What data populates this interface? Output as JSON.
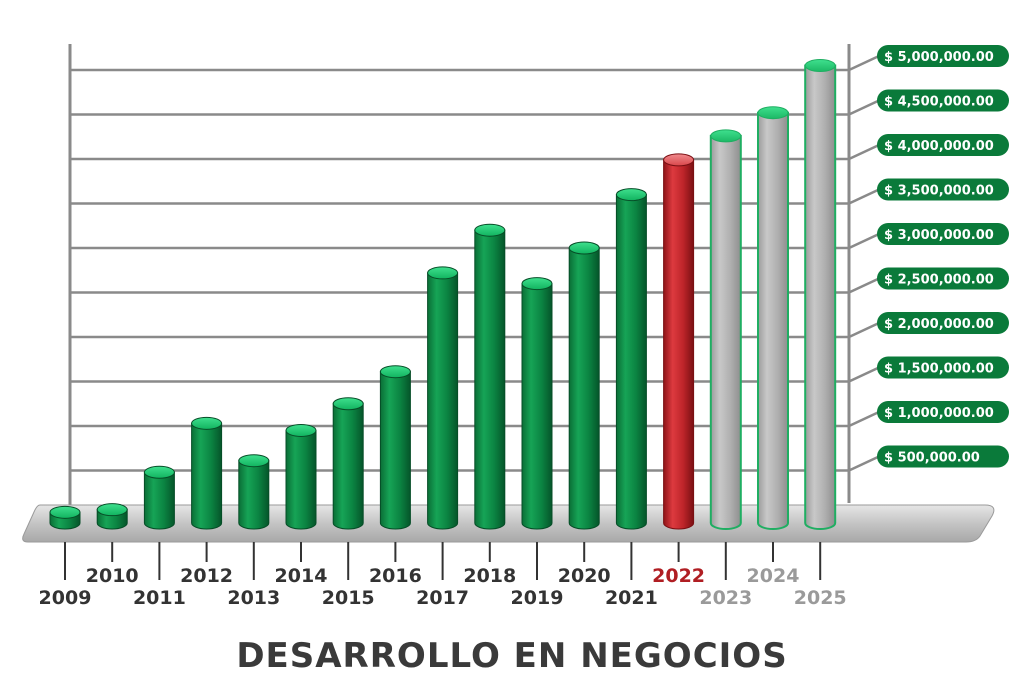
{
  "chart_data": {
    "type": "bar",
    "title": "DESARROLLO EN NEGOCIOS",
    "categories": [
      "2009",
      "2010",
      "2011",
      "2012",
      "2013",
      "2014",
      "2015",
      "2016",
      "2017",
      "2018",
      "2019",
      "2020",
      "2021",
      "2022",
      "2023",
      "2024",
      "2025"
    ],
    "values": [
      30000,
      60000,
      480000,
      1030000,
      610000,
      950000,
      1250000,
      1610000,
      2720000,
      3200000,
      2600000,
      3000000,
      3600000,
      3990000,
      4260000,
      4520000,
      5050000
    ],
    "bar_status": [
      "actual",
      "actual",
      "actual",
      "actual",
      "actual",
      "actual",
      "actual",
      "actual",
      "actual",
      "actual",
      "actual",
      "actual",
      "actual",
      "current",
      "projected",
      "projected",
      "projected"
    ],
    "ylim": [
      0,
      5000000
    ],
    "grid": true,
    "y_tick_labels": [
      "$  500,000.00",
      "$  1,000,000.00",
      "$  1,500,000.00",
      "$  2,000,000.00",
      "$  2,500,000.00",
      "$  3,000,000.00",
      "$  3,500,000.00",
      "$  4,000,000.00",
      "$  4,500,000.00",
      "$  5,000,000.00"
    ],
    "y_tick_values": [
      500000,
      1000000,
      1500000,
      2000000,
      2500000,
      3000000,
      3500000,
      4000000,
      4500000,
      5000000
    ],
    "colors": {
      "actual": "#0a8a45",
      "current": "#c0272d",
      "projected": "#b3b3b3",
      "badge": "#0a7a3a",
      "grid": "#8a8a8a",
      "label_actual": "#333333",
      "label_current": "#b01e23",
      "label_projected": "#9a9a9a"
    }
  }
}
